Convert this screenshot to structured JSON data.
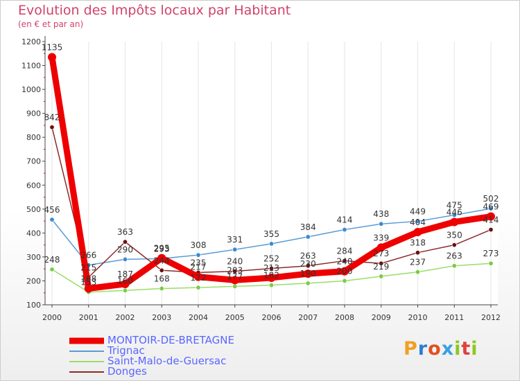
{
  "title": "Evolution des Impôts locaux par Habitant",
  "subtitle": "(en € et par an)",
  "logo": {
    "text": "Proxiti",
    "colors": [
      "#f0a020",
      "#2a7fd0",
      "#e05020",
      "#3aa0e0",
      "#8cc820",
      "#e04040",
      "#8cc820"
    ]
  },
  "chart_data": {
    "type": "line",
    "title": "Evolution des Impôts locaux par Habitant",
    "subtitle": "(en € et par an)",
    "xlabel": "",
    "ylabel": "",
    "ylim": [
      100,
      1200
    ],
    "yticks": [
      100,
      200,
      300,
      400,
      500,
      600,
      700,
      800,
      900,
      1000,
      1100,
      1200
    ],
    "categories": [
      "2000",
      "2001",
      "2002",
      "2003",
      "2004",
      "2005",
      "2006",
      "2007",
      "2008",
      "2009",
      "2010",
      "2011",
      "2012"
    ],
    "legend_position": "bottom-left",
    "series": [
      {
        "name": "MONTOIR-DE-BRETAGNE",
        "color": "#ee0000",
        "marker_color": "#ee0000",
        "values": [
          1135,
          168,
          187,
          295,
          217,
          203,
          213,
          230,
          240,
          339,
          404,
          446,
          469
        ],
        "labels": [
          "1135",
          "168",
          "187",
          "295",
          "217",
          "203",
          "213",
          "230",
          "240",
          "339",
          "404",
          "446",
          "469"
        ]
      },
      {
        "name": "Trignac",
        "color": "#5b9bd5",
        "marker_color": "#3a8bd0",
        "values": [
          456,
          266,
          290,
          293,
          308,
          331,
          355,
          384,
          414,
          438,
          449,
          475,
          502
        ],
        "labels": [
          "456",
          "266",
          "290",
          "293",
          "308",
          "331",
          "355",
          "384",
          "414",
          "438",
          "449",
          "475",
          "502"
        ]
      },
      {
        "name": "Saint-Malo-de-Guersac",
        "color": "#99dd66",
        "marker_color": "#7acc44",
        "values": [
          248,
          153,
          160,
          168,
          172,
          177,
          182,
          190,
          200,
          219,
          237,
          263,
          273
        ],
        "labels": [
          "248",
          "153",
          "160",
          "168",
          "172",
          "177",
          "182",
          "190",
          "200",
          "219",
          "237",
          "263",
          "273"
        ]
      },
      {
        "name": "Donges",
        "color": "#8b2a2a",
        "marker_color": "#6b1010",
        "values": [
          842,
          215,
          363,
          244,
          235,
          240,
          252,
          263,
          284,
          273,
          318,
          350,
          414
        ],
        "labels": [
          "842",
          "215",
          "363",
          "244",
          "235",
          "240",
          "252",
          "263",
          "284",
          "273",
          "318",
          "350",
          "414"
        ]
      }
    ]
  }
}
